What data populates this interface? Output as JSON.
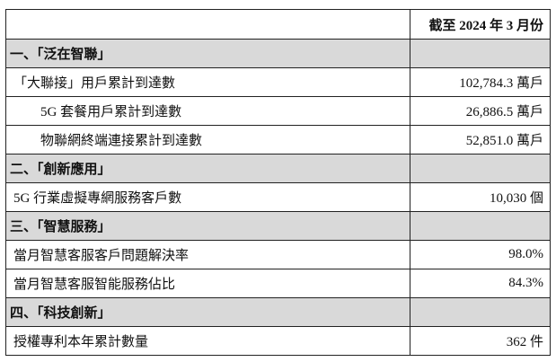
{
  "header": {
    "label": "",
    "period": "截至 2024 年 3 月份"
  },
  "sections": [
    {
      "title": "一、「泛在智聯」",
      "rows": [
        {
          "label": "「大聯接」用戶累計到達數",
          "value": "102,784.3 萬戶",
          "indent": false
        },
        {
          "label": "5G 套餐用戶累計到達數",
          "value": "26,886.5 萬戶",
          "indent": true
        },
        {
          "label": "物聯網終端連接累計到達數",
          "value": "52,851.0 萬戶",
          "indent": true
        }
      ]
    },
    {
      "title": "二、「創新應用」",
      "rows": [
        {
          "label": "5G 行業虛擬專網服務客戶數",
          "value": "10,030 個",
          "indent": false
        }
      ]
    },
    {
      "title": "三、「智慧服務」",
      "rows": [
        {
          "label": "當月智慧客服客戶問題解決率",
          "value": "98.0%",
          "indent": false
        },
        {
          "label": "當月智慧客服智能服務佔比",
          "value": "84.3%",
          "indent": false
        }
      ]
    },
    {
      "title": "四、「科技創新」",
      "rows": [
        {
          "label": "授權專利本年累計數量",
          "value": "362 件",
          "indent": false
        }
      ]
    }
  ]
}
